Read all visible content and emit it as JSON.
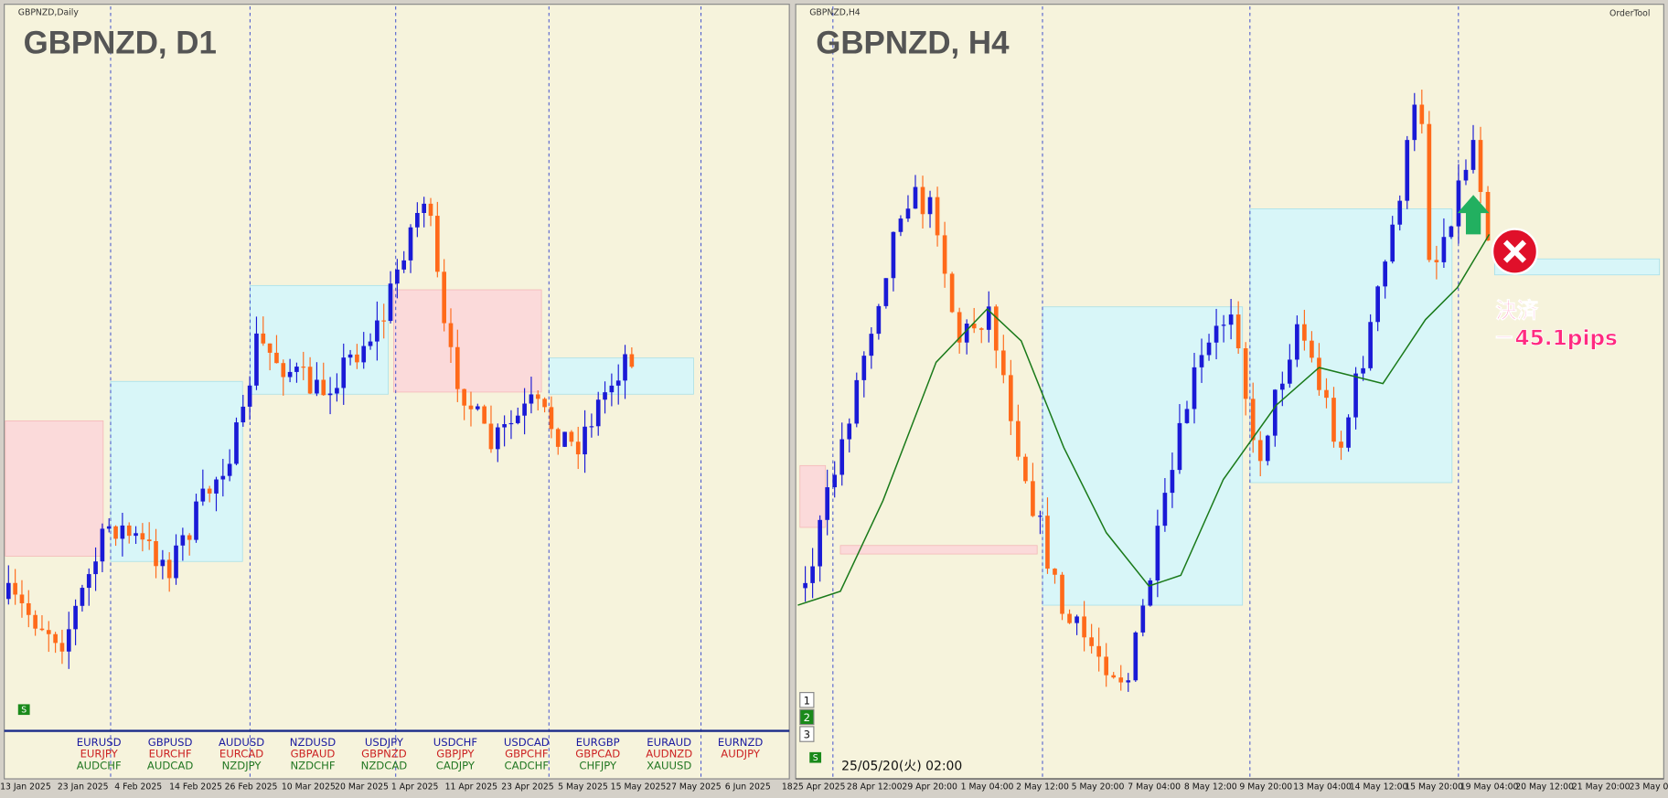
{
  "left_panel": {
    "label": "GBPNZD,Daily",
    "title": "GBPNZD, D1",
    "x_labels": [
      "13 Jan 2025",
      "23 Jan 2025",
      "4 Feb 2025",
      "14 Feb 2025",
      "26 Feb 2025",
      "10 Mar 2025",
      "20 Mar 2025",
      "1 Apr 2025",
      "11 Apr 2025",
      "23 Apr 2025",
      "5 May 2025",
      "15 May 2025",
      "27 May 2025",
      "6 Jun 2025",
      "18"
    ],
    "symbols": [
      [
        "EURUSD",
        "EURJPY",
        "AUDCHF"
      ],
      [
        "GBPUSD",
        "EURCHF",
        "AUDCAD"
      ],
      [
        "AUDUSD",
        "EURCAD",
        "NZDJPY"
      ],
      [
        "NZDUSD",
        "GBPAUD",
        "NZDCHF"
      ],
      [
        "USDJPY",
        "GBPNZD",
        "NZDCAD"
      ],
      [
        "USDCHF",
        "GBPJPY",
        "CADJPY"
      ],
      [
        "USDCAD",
        "GBPCHF",
        "CADCHF"
      ],
      [
        "EURGBP",
        "GBPCAD",
        "CHFJPY"
      ],
      [
        "EURAUD",
        "AUDNZD",
        "XAUUSD"
      ],
      [
        "EURNZD",
        "AUDJPY"
      ]
    ],
    "button": "S"
  },
  "right_panel": {
    "label": "GBPNZD,H4",
    "title": "GBPNZD, H4",
    "tool": "OrderTool",
    "x_labels": [
      "25 Apr 2025",
      "28 Apr 12:00",
      "29 Apr 20:00",
      "1 May 04:00",
      "2 May 12:00",
      "5 May 20:00",
      "7 May 04:00",
      "8 May 12:00",
      "9 May 20:00",
      "13 May 04:00",
      "14 May 12:00",
      "15 May 20:00",
      "19 May 04:00",
      "20 May 12:00",
      "21 May 20:00",
      "23 May 0"
    ],
    "timestamp": "25/05/20(火) 02:00",
    "tabs": [
      "1",
      "2",
      "3"
    ],
    "button": "S",
    "annotation": {
      "line1": "決済",
      "line2": "－45.1pips"
    }
  }
}
